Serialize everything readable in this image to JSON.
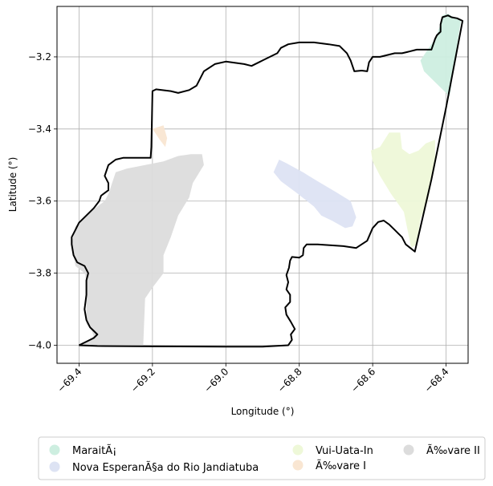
{
  "chart_data": {
    "type": "map",
    "title": "",
    "xlabel": "Longitude (°)",
    "ylabel": "Latitude (°)",
    "xlim": [
      -69.46,
      -68.34
    ],
    "ylim": [
      -4.05,
      -3.06
    ],
    "x_ticks": [
      -69.4,
      -69.2,
      -69.0,
      -68.8,
      -68.6,
      -68.4
    ],
    "x_tick_labels": [
      "−69.4",
      "−69.2",
      "−69.0",
      "−68.8",
      "−68.6",
      "−68.4"
    ],
    "y_ticks": [
      -4.0,
      -3.8,
      -3.6,
      -3.4,
      -3.2
    ],
    "y_tick_labels": [
      "−4.0",
      "−3.8",
      "−3.6",
      "−3.4",
      "−3.2"
    ],
    "grid": true,
    "legend_position": "below",
    "legend": [
      {
        "name": "MaraitÃ¡",
        "color": "#cdeee0"
      },
      {
        "name": "Nova EsperanÃ§a do Rio Jandiatuba",
        "color": "#dde3f3"
      },
      {
        "name": "Vui-Uata-In",
        "color": "#eef8d8"
      },
      {
        "name": "Ã‰vare I",
        "color": "#f9e6d2"
      },
      {
        "name": "Ã‰vare II",
        "color": "#dcdcdc"
      }
    ],
    "boundary": [
      [
        -69.4,
        -4.0
      ],
      [
        -69.35,
        -4.002
      ],
      [
        -69.2,
        -4.003
      ],
      [
        -69.0,
        -4.004
      ],
      [
        -68.9,
        -4.004
      ],
      [
        -68.83,
        -4.0
      ],
      [
        -68.82,
        -3.985
      ],
      [
        -68.823,
        -3.97
      ],
      [
        -68.812,
        -3.955
      ],
      [
        -68.823,
        -3.935
      ],
      [
        -68.835,
        -3.915
      ],
      [
        -68.838,
        -3.895
      ],
      [
        -68.825,
        -3.88
      ],
      [
        -68.825,
        -3.86
      ],
      [
        -68.835,
        -3.845
      ],
      [
        -68.83,
        -3.825
      ],
      [
        -68.835,
        -3.805
      ],
      [
        -68.828,
        -3.785
      ],
      [
        -68.825,
        -3.765
      ],
      [
        -68.82,
        -3.755
      ],
      [
        -68.8,
        -3.757
      ],
      [
        -68.79,
        -3.75
      ],
      [
        -68.788,
        -3.73
      ],
      [
        -68.78,
        -3.72
      ],
      [
        -68.75,
        -3.72
      ],
      [
        -68.68,
        -3.725
      ],
      [
        -68.645,
        -3.73
      ],
      [
        -68.63,
        -3.72
      ],
      [
        -68.615,
        -3.71
      ],
      [
        -68.6,
        -3.675
      ],
      [
        -68.585,
        -3.658
      ],
      [
        -68.57,
        -3.654
      ],
      [
        -68.555,
        -3.665
      ],
      [
        -68.54,
        -3.68
      ],
      [
        -68.53,
        -3.69
      ],
      [
        -68.52,
        -3.7
      ],
      [
        -68.51,
        -3.72
      ],
      [
        -68.485,
        -3.74
      ],
      [
        -68.44,
        -3.54
      ],
      [
        -68.4,
        -3.34
      ],
      [
        -68.355,
        -3.1
      ],
      [
        -68.37,
        -3.093
      ],
      [
        -68.385,
        -3.09
      ],
      [
        -68.395,
        -3.085
      ],
      [
        -68.41,
        -3.09
      ],
      [
        -68.415,
        -3.11
      ],
      [
        -68.415,
        -3.13
      ],
      [
        -68.425,
        -3.14
      ],
      [
        -68.43,
        -3.15
      ],
      [
        -68.44,
        -3.18
      ],
      [
        -68.465,
        -3.18
      ],
      [
        -68.48,
        -3.18
      ],
      [
        -68.5,
        -3.185
      ],
      [
        -68.52,
        -3.19
      ],
      [
        -68.54,
        -3.19
      ],
      [
        -68.58,
        -3.2
      ],
      [
        -68.6,
        -3.2
      ],
      [
        -68.61,
        -3.215
      ],
      [
        -68.615,
        -3.24
      ],
      [
        -68.63,
        -3.238
      ],
      [
        -68.65,
        -3.24
      ],
      [
        -68.655,
        -3.225
      ],
      [
        -68.66,
        -3.21
      ],
      [
        -68.67,
        -3.19
      ],
      [
        -68.69,
        -3.17
      ],
      [
        -68.72,
        -3.165
      ],
      [
        -68.76,
        -3.16
      ],
      [
        -68.8,
        -3.16
      ],
      [
        -68.83,
        -3.165
      ],
      [
        -68.85,
        -3.175
      ],
      [
        -68.86,
        -3.19
      ],
      [
        -68.88,
        -3.2
      ],
      [
        -68.9,
        -3.21
      ],
      [
        -68.91,
        -3.215
      ],
      [
        -68.93,
        -3.225
      ],
      [
        -68.95,
        -3.22
      ],
      [
        -69.0,
        -3.213
      ],
      [
        -69.03,
        -3.22
      ],
      [
        -69.06,
        -3.24
      ],
      [
        -69.07,
        -3.26
      ],
      [
        -69.08,
        -3.28
      ],
      [
        -69.1,
        -3.292
      ],
      [
        -69.13,
        -3.3
      ],
      [
        -69.15,
        -3.295
      ],
      [
        -69.19,
        -3.29
      ],
      [
        -69.2,
        -3.295
      ],
      [
        -69.203,
        -3.45
      ],
      [
        -69.205,
        -3.48
      ],
      [
        -69.23,
        -3.48
      ],
      [
        -69.28,
        -3.48
      ],
      [
        -69.3,
        -3.485
      ],
      [
        -69.32,
        -3.5
      ],
      [
        -69.33,
        -3.53
      ],
      [
        -69.32,
        -3.55
      ],
      [
        -69.32,
        -3.57
      ],
      [
        -69.34,
        -3.585
      ],
      [
        -69.345,
        -3.6
      ],
      [
        -69.36,
        -3.62
      ],
      [
        -69.38,
        -3.64
      ],
      [
        -69.4,
        -3.66
      ],
      [
        -69.41,
        -3.68
      ],
      [
        -69.42,
        -3.7
      ],
      [
        -69.42,
        -3.72
      ],
      [
        -69.415,
        -3.75
      ],
      [
        -69.405,
        -3.77
      ],
      [
        -69.385,
        -3.78
      ],
      [
        -69.375,
        -3.8
      ],
      [
        -69.38,
        -3.82
      ],
      [
        -69.38,
        -3.86
      ],
      [
        -69.385,
        -3.9
      ],
      [
        -69.38,
        -3.93
      ],
      [
        -69.37,
        -3.95
      ],
      [
        -69.36,
        -3.96
      ],
      [
        -69.35,
        -3.97
      ],
      [
        -69.36,
        -3.98
      ],
      [
        -69.38,
        -3.99
      ],
      [
        -69.4,
        -4.0
      ]
    ],
    "areas": [
      {
        "name": "Ã‰vare II",
        "coords": [
          [
            -69.4,
            -4.0
          ],
          [
            -69.38,
            -3.99
          ],
          [
            -69.36,
            -3.975
          ],
          [
            -69.365,
            -3.96
          ],
          [
            -69.38,
            -3.94
          ],
          [
            -69.38,
            -3.9
          ],
          [
            -69.38,
            -3.86
          ],
          [
            -69.38,
            -3.82
          ],
          [
            -69.385,
            -3.8
          ],
          [
            -69.41,
            -3.78
          ],
          [
            -69.415,
            -3.75
          ],
          [
            -69.42,
            -3.72
          ],
          [
            -69.41,
            -3.67
          ],
          [
            -69.37,
            -3.63
          ],
          [
            -69.33,
            -3.6
          ],
          [
            -69.32,
            -3.58
          ],
          [
            -69.31,
            -3.55
          ],
          [
            -69.3,
            -3.52
          ],
          [
            -69.27,
            -3.51
          ],
          [
            -69.22,
            -3.5
          ],
          [
            -69.17,
            -3.49
          ],
          [
            -69.13,
            -3.475
          ],
          [
            -69.095,
            -3.47
          ],
          [
            -69.065,
            -3.47
          ],
          [
            -69.06,
            -3.5
          ],
          [
            -69.09,
            -3.55
          ],
          [
            -69.1,
            -3.59
          ],
          [
            -69.13,
            -3.64
          ],
          [
            -69.15,
            -3.7
          ],
          [
            -69.17,
            -3.75
          ],
          [
            -69.17,
            -3.8
          ],
          [
            -69.2,
            -3.84
          ],
          [
            -69.22,
            -3.87
          ],
          [
            -69.225,
            -4.0
          ],
          [
            -69.3,
            -4.002
          ],
          [
            -69.4,
            -4.0
          ]
        ]
      },
      {
        "name": "Ã‰vare I",
        "coords": [
          [
            -69.2,
            -3.4
          ],
          [
            -69.18,
            -3.43
          ],
          [
            -69.165,
            -3.45
          ],
          [
            -69.16,
            -3.425
          ],
          [
            -69.17,
            -3.39
          ],
          [
            -69.2,
            -3.4
          ]
        ]
      },
      {
        "name": "Nova EsperanÃ§a do Rio Jandiatuba",
        "coords": [
          [
            -68.87,
            -3.52
          ],
          [
            -68.855,
            -3.485
          ],
          [
            -68.835,
            -3.495
          ],
          [
            -68.79,
            -3.52
          ],
          [
            -68.75,
            -3.545
          ],
          [
            -68.7,
            -3.575
          ],
          [
            -68.66,
            -3.6
          ],
          [
            -68.645,
            -3.645
          ],
          [
            -68.655,
            -3.67
          ],
          [
            -68.675,
            -3.675
          ],
          [
            -68.71,
            -3.655
          ],
          [
            -68.74,
            -3.64
          ],
          [
            -68.76,
            -3.615
          ],
          [
            -68.81,
            -3.575
          ],
          [
            -68.85,
            -3.545
          ],
          [
            -68.87,
            -3.52
          ]
        ]
      },
      {
        "name": "Vui-Uata-In",
        "coords": [
          [
            -68.555,
            -3.41
          ],
          [
            -68.525,
            -3.41
          ],
          [
            -68.52,
            -3.455
          ],
          [
            -68.5,
            -3.47
          ],
          [
            -68.475,
            -3.46
          ],
          [
            -68.455,
            -3.44
          ],
          [
            -68.43,
            -3.43
          ],
          [
            -68.43,
            -3.5
          ],
          [
            -68.45,
            -3.6
          ],
          [
            -68.47,
            -3.65
          ],
          [
            -68.48,
            -3.72
          ],
          [
            -68.495,
            -3.73
          ],
          [
            -68.505,
            -3.68
          ],
          [
            -68.515,
            -3.63
          ],
          [
            -68.55,
            -3.58
          ],
          [
            -68.58,
            -3.53
          ],
          [
            -68.6,
            -3.49
          ],
          [
            -68.605,
            -3.46
          ],
          [
            -68.58,
            -3.45
          ],
          [
            -68.555,
            -3.41
          ]
        ]
      },
      {
        "name": "MaraitÃ¡",
        "coords": [
          [
            -68.45,
            -3.18
          ],
          [
            -68.43,
            -3.15
          ],
          [
            -68.415,
            -3.11
          ],
          [
            -68.41,
            -3.085
          ],
          [
            -68.395,
            -3.08
          ],
          [
            -68.38,
            -3.09
          ],
          [
            -68.36,
            -3.1
          ],
          [
            -68.375,
            -3.2
          ],
          [
            -68.39,
            -3.31
          ],
          [
            -68.42,
            -3.28
          ],
          [
            -68.46,
            -3.24
          ],
          [
            -68.47,
            -3.21
          ],
          [
            -68.45,
            -3.18
          ]
        ]
      }
    ]
  }
}
